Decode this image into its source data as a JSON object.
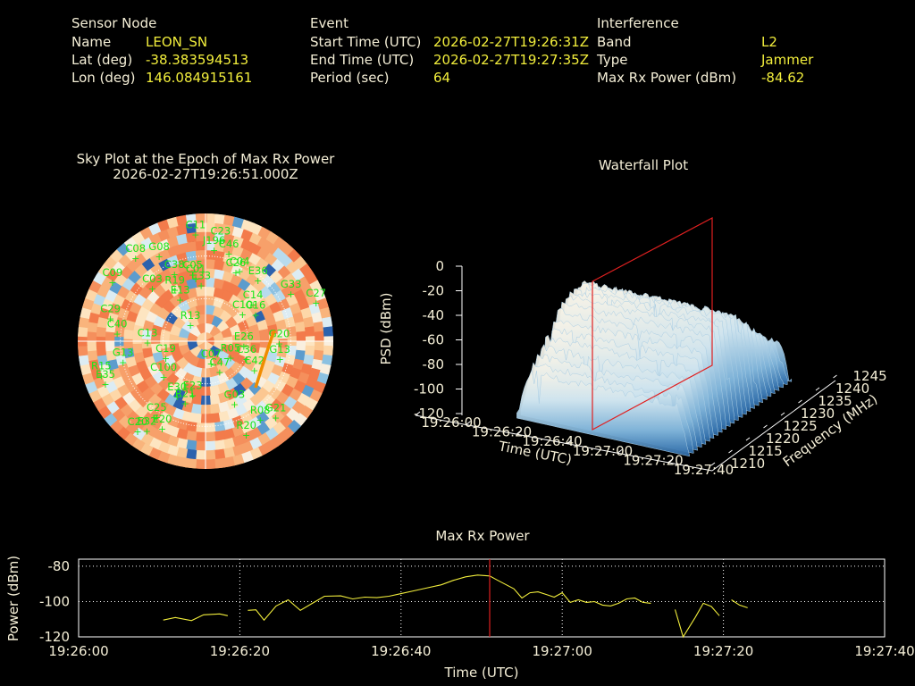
{
  "info": {
    "sensor_header": "Sensor Node",
    "name_label": "Name",
    "name_value": "LEON_SN",
    "lat_label": "Lat (deg)",
    "lat_value": "-38.383594513",
    "lon_label": "Lon (deg)",
    "lon_value": "146.084915161",
    "event_header": "Event",
    "start_label": "Start Time (UTC)",
    "start_value": "2026-02-27T19:26:31Z",
    "end_label": "End Time (UTC)",
    "end_value": "2026-02-27T19:27:35Z",
    "period_label": "Period (sec)",
    "period_value": "64",
    "interf_header": "Interference",
    "band_label": "Band",
    "band_value": "L2",
    "type_label": "Type",
    "type_value": "Jammer",
    "maxrx_label": "Max Rx Power (dBm)",
    "maxrx_value": "-84.62"
  },
  "colors": {
    "header": "#f5efd7",
    "value": "#f2ee3c",
    "sat": "#19e619",
    "line": "#f2ee3c",
    "marker": "#e02020",
    "track": "#f08c00"
  },
  "chart_data": [
    {
      "type": "scatter",
      "title": "Sky Plot at the Epoch of Max Rx Power",
      "subtitle": "2026-02-27T19:26:51.000Z",
      "satellites": [
        {
          "id": "C11",
          "az": 355,
          "el": 10
        },
        {
          "id": "C23",
          "az": 8,
          "el": 14
        },
        {
          "id": "J196",
          "az": 5,
          "el": 21
        },
        {
          "id": "C46",
          "az": 14,
          "el": 22
        },
        {
          "id": "G08",
          "az": 333,
          "el": 18
        },
        {
          "id": "C08",
          "az": 322,
          "el": 10
        },
        {
          "id": "C09",
          "az": 305,
          "el": 10
        },
        {
          "id": "C38",
          "az": 337,
          "el": 34
        },
        {
          "id": "C05",
          "az": 350,
          "el": 38
        },
        {
          "id": "C01",
          "az": 352,
          "el": 41
        },
        {
          "id": "E33",
          "az": 356,
          "el": 46
        },
        {
          "id": "C03",
          "az": 318,
          "el": 34
        },
        {
          "id": "R19",
          "az": 332,
          "el": 44
        },
        {
          "id": "E13",
          "az": 332,
          "el": 52
        },
        {
          "id": "C26",
          "az": 22,
          "el": 33
        },
        {
          "id": "C04",
          "az": 24,
          "el": 31
        },
        {
          "id": "E36",
          "az": 38,
          "el": 30
        },
        {
          "id": "C14",
          "az": 48,
          "el": 45
        },
        {
          "id": "G33",
          "az": 58,
          "el": 19
        },
        {
          "id": "C27",
          "az": 68,
          "el": 6
        },
        {
          "id": "C29",
          "az": 287,
          "el": 20
        },
        {
          "id": "C40",
          "az": 279,
          "el": 27
        },
        {
          "id": "C10",
          "az": 48,
          "el": 55
        },
        {
          "id": "C16",
          "az": 57,
          "el": 48
        },
        {
          "id": "R13",
          "az": 326,
          "el": 71
        },
        {
          "id": "C13",
          "az": 275,
          "el": 49
        },
        {
          "id": "G13",
          "az": 260,
          "el": 31
        },
        {
          "id": "E26",
          "az": 88,
          "el": 63
        },
        {
          "id": "R05",
          "az": 112,
          "el": 71
        },
        {
          "id": "G20",
          "az": 87,
          "el": 38
        },
        {
          "id": "G13",
          "az": 99,
          "el": 37
        },
        {
          "id": "C36",
          "az": 106,
          "el": 60
        },
        {
          "id": "C42",
          "az": 115,
          "el": 52
        },
        {
          "id": "C19",
          "az": 255,
          "el": 61
        },
        {
          "id": "C07",
          "az": 161,
          "el": 78
        },
        {
          "id": "C47",
          "az": 150,
          "el": 70
        },
        {
          "id": "C100",
          "az": 235,
          "el": 54
        },
        {
          "id": "R15",
          "az": 255,
          "el": 14
        },
        {
          "id": "E35",
          "az": 250,
          "el": 15
        },
        {
          "id": "C25",
          "az": 215,
          "el": 30
        },
        {
          "id": "E20",
          "az": 208,
          "el": 25
        },
        {
          "id": "E32",
          "az": 215,
          "el": 18
        },
        {
          "id": "C20",
          "az": 219,
          "el": 14
        },
        {
          "id": "R21",
          "az": 200,
          "el": 48
        },
        {
          "id": "E23",
          "az": 195,
          "el": 55
        },
        {
          "id": "E30",
          "az": 210,
          "el": 50
        },
        {
          "id": "G03",
          "az": 153,
          "el": 45
        },
        {
          "id": "R08",
          "az": 143,
          "el": 26
        },
        {
          "id": "R20",
          "az": 155,
          "el": 22
        },
        {
          "id": "G21",
          "az": 135,
          "el": 20
        }
      ]
    },
    {
      "type": "area",
      "title": "Waterfall Plot",
      "xlabel": "Time (UTC)",
      "ylabel": "Frequency (MHz)",
      "zlabel": "PSD (dBm)",
      "x_ticks": [
        "19:26:00",
        "19:26:20",
        "19:26:40",
        "19:27:00",
        "19:27:20",
        "19:27:40"
      ],
      "y_ticks": [
        "1210",
        "1215",
        "1220",
        "1225",
        "1230",
        "1235",
        "1240",
        "1245"
      ],
      "z_ticks": [
        "0",
        "-20",
        "-40",
        "-60",
        "-80",
        "-100",
        "-120"
      ],
      "zlim": [
        -120,
        0
      ]
    },
    {
      "type": "line",
      "title": "Max Rx Power",
      "xlabel": "Time (UTC)",
      "ylabel": "Power (dBm)",
      "x_ticks": [
        "19:26:00",
        "19:26:20",
        "19:26:40",
        "19:27:00",
        "19:27:20",
        "19:27:40"
      ],
      "y_ticks": [
        "-80",
        "-100",
        "-120"
      ],
      "xlim": [
        0,
        100
      ],
      "ylim": [
        -120,
        -76
      ],
      "marker_x": 51,
      "segments": [
        [
          [
            10.5,
            -110.5
          ],
          [
            12,
            -109
          ],
          [
            14,
            -110.8
          ],
          [
            15.5,
            -107.5
          ],
          [
            17.5,
            -107
          ],
          [
            18.5,
            -108
          ]
        ],
        [
          [
            21,
            -105
          ],
          [
            22,
            -104.7
          ],
          [
            23,
            -110.5
          ],
          [
            24.5,
            -102.5
          ],
          [
            26,
            -99
          ],
          [
            27.5,
            -105
          ],
          [
            29,
            -101
          ],
          [
            30.5,
            -97
          ],
          [
            32.5,
            -96.8
          ],
          [
            34,
            -98.5
          ],
          [
            35.5,
            -97.5
          ],
          [
            37,
            -97.8
          ],
          [
            38.5,
            -97
          ],
          [
            40,
            -95.5
          ],
          [
            41.5,
            -94
          ],
          [
            43,
            -92.5
          ],
          [
            45,
            -90.5
          ],
          [
            46.5,
            -88
          ],
          [
            48,
            -86
          ],
          [
            49.5,
            -85
          ],
          [
            51,
            -85.5
          ],
          [
            52,
            -88
          ],
          [
            54,
            -92.8
          ],
          [
            55,
            -98
          ],
          [
            56,
            -95
          ],
          [
            57,
            -94.5
          ],
          [
            58,
            -96
          ],
          [
            59,
            -97.5
          ],
          [
            60,
            -95
          ],
          [
            61,
            -100.5
          ],
          [
            62,
            -99
          ],
          [
            63,
            -100.5
          ],
          [
            64,
            -100
          ],
          [
            65,
            -102
          ],
          [
            66,
            -102.5
          ],
          [
            67,
            -101
          ],
          [
            68,
            -98.5
          ],
          [
            69,
            -98
          ],
          [
            70,
            -100.5
          ],
          [
            71,
            -101
          ]
        ],
        [
          [
            74,
            -104.5
          ],
          [
            75,
            -120
          ],
          [
            76.5,
            -109
          ],
          [
            77.5,
            -101
          ],
          [
            78.5,
            -102.8
          ],
          [
            79.5,
            -108
          ]
        ],
        [
          [
            81,
            -99
          ],
          [
            82,
            -102
          ],
          [
            83,
            -103.5
          ]
        ]
      ]
    }
  ]
}
